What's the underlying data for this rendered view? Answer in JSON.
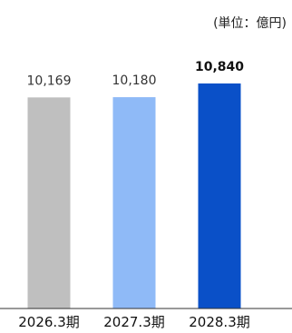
{
  "chart_data": {
    "type": "bar",
    "unit_label": "(単位：億円)",
    "categories": [
      "2026.3期",
      "2027.3期",
      "2028.3期"
    ],
    "values": [
      10169,
      10180,
      10840
    ],
    "value_labels": [
      "10,169",
      "10,180",
      "10,840"
    ],
    "bold_labels": [
      false,
      false,
      true
    ],
    "colors": [
      "#bfbfbf",
      "#8fbaf7",
      "#0a50c8"
    ],
    "ylim": [
      0,
      11000
    ],
    "grid": false,
    "legend": "none"
  }
}
